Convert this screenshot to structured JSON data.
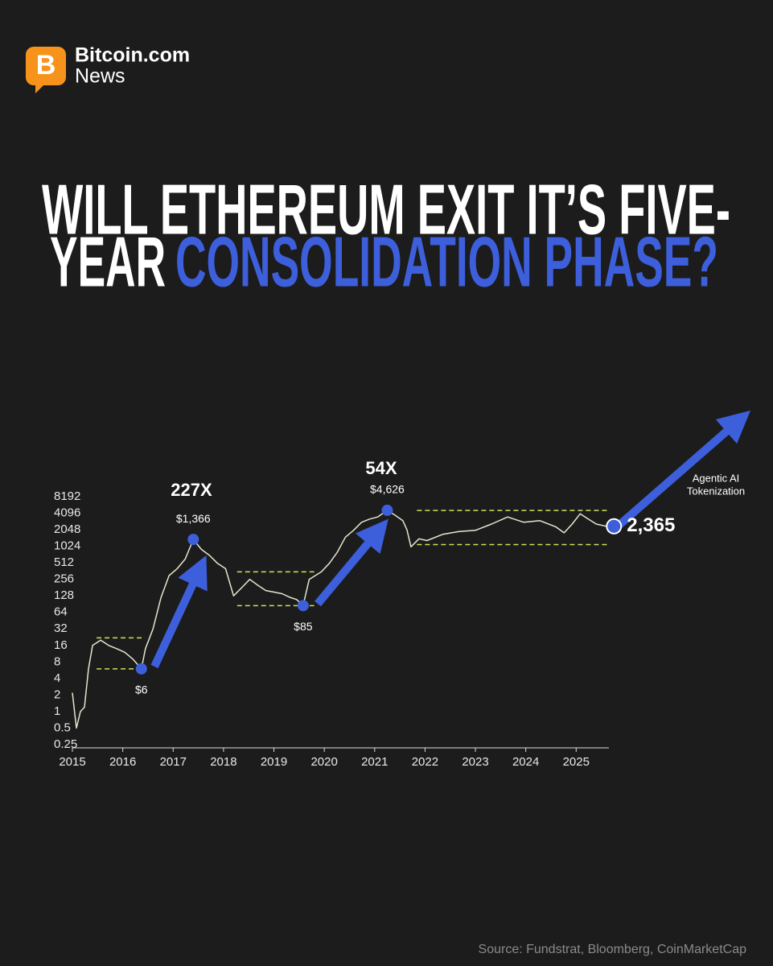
{
  "brand": {
    "name": "Bitcoin.com",
    "sub": "News"
  },
  "title": {
    "line1": "WILL ETHEREUM EXIT IT’S FIVE-",
    "line2_start": "YEAR",
    "line2_highlight": "CONSOLIDATION PHASE?"
  },
  "source": "Source: Fundstrat, Bloomberg, CoinMarketCap",
  "chart_data": {
    "type": "line",
    "log_scale": true,
    "xlim": [
      2015,
      2025.65
    ],
    "ylim": [
      0.25,
      8192
    ],
    "xticks": [
      2015,
      2016,
      2017,
      2018,
      2019,
      2020,
      2021,
      2022,
      2023,
      2024,
      2025
    ],
    "yticks": [
      0.25,
      0.5,
      1,
      2,
      4,
      8,
      16,
      32,
      64,
      128,
      256,
      512,
      1024,
      2048,
      4096,
      8192
    ],
    "series": [
      {
        "color": "#e4e6cf",
        "x": [
          2015,
          2015.08,
          2015.16,
          2015.24,
          2015.32,
          2015.4,
          2015.56,
          2015.72,
          2015.88,
          2016.04,
          2016.2,
          2016.37,
          2016.45,
          2016.6,
          2016.76,
          2016.92,
          2017.08,
          2017.24,
          2017.4,
          2017.56,
          2017.72,
          2017.88,
          2018.04,
          2018.2,
          2018.36,
          2018.52,
          2018.68,
          2018.84,
          2019.0,
          2019.16,
          2019.32,
          2019.45,
          2019.58,
          2019.7,
          2019.94,
          2020.1,
          2020.26,
          2020.42,
          2020.58,
          2020.74,
          2020.9,
          2021.06,
          2021.25,
          2021.4,
          2021.56,
          2021.64,
          2021.72,
          2021.88,
          2022.04,
          2022.36,
          2022.68,
          2023.0,
          2023.32,
          2023.64,
          2023.96,
          2024.28,
          2024.6,
          2024.76,
          2024.92,
          2025.08,
          2025.24,
          2025.4,
          2025.6
        ],
        "values": [
          2.2,
          0.5,
          1,
          1.2,
          6,
          16,
          20,
          16,
          14,
          12,
          9,
          6,
          14,
          32,
          120,
          300,
          400,
          600,
          1366,
          900,
          700,
          500,
          400,
          128,
          180,
          256,
          200,
          160,
          150,
          140,
          120,
          110,
          85,
          256,
          350,
          500,
          800,
          1500,
          2000,
          2800,
          3200,
          3500,
          4626,
          3800,
          3000,
          2048,
          1000,
          1400,
          1300,
          1700,
          1900,
          2000,
          2600,
          3500,
          2800,
          3000,
          2300,
          1800,
          2600,
          4000,
          3200,
          2600,
          2365
        ]
      }
    ],
    "ranges": [
      {
        "x0": 2015.48,
        "x1": 2016.44,
        "low": 6,
        "high": 22
      },
      {
        "x0": 2018.27,
        "x1": 2019.8,
        "low": 85,
        "high": 350
      },
      {
        "x0": 2021.84,
        "x1": 2025.65,
        "low": 1100,
        "high": 4600
      }
    ],
    "points": [
      {
        "x": 2016.37,
        "value": 6,
        "label": "$6"
      },
      {
        "x": 2017.4,
        "value": 1366,
        "label": "$1,366"
      },
      {
        "x": 2019.58,
        "value": 85,
        "label": "$85"
      },
      {
        "x": 2021.25,
        "value": 4626,
        "label": "$4,626"
      },
      {
        "x": 2025.75,
        "value": 2365,
        "label": "2,365"
      }
    ],
    "multipliers": [
      "227X",
      "54X"
    ],
    "annotation": [
      "Agentic AI",
      "Tokenization"
    ]
  }
}
